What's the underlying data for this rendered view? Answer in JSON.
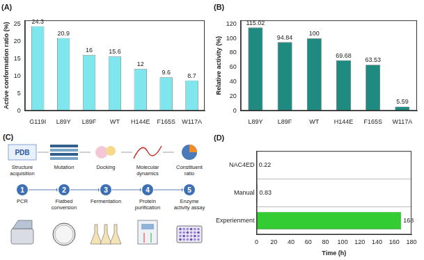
{
  "chart_data": [
    {
      "type": "bar",
      "title": "(A)",
      "categories": [
        "G119I",
        "L89Y",
        "L89F",
        "WT",
        "H144E",
        "F165S",
        "W117A"
      ],
      "values": [
        24.3,
        20.9,
        16,
        15.6,
        12,
        9.6,
        8.7
      ],
      "color": "#7fe6ee",
      "y_label": "Active conformation ratio (%)",
      "ylim": [
        0,
        26
      ],
      "yticks": [
        0,
        5,
        10,
        15,
        20,
        25
      ],
      "grid": false,
      "data_labels": true
    },
    {
      "type": "bar",
      "title": "(B)",
      "categories": [
        "L89Y",
        "L89F",
        "WT",
        "H144E",
        "F165S",
        "W117A"
      ],
      "values": [
        115.02,
        94.84,
        100,
        69.68,
        63.53,
        5.59
      ],
      "color": "#1f8a80",
      "y_label": "Relative activity (%)",
      "ylim": [
        0,
        125
      ],
      "yticks": [
        0,
        20,
        40,
        60,
        80,
        100,
        120
      ],
      "grid": false,
      "data_labels": true
    },
    {
      "type": "bar",
      "title": "(D)",
      "orientation": "horizontal",
      "categories": [
        "NAC4ED",
        "Manual",
        "Experienment"
      ],
      "values": [
        0.22,
        0.83,
        168
      ],
      "color": "#33cc33",
      "x_label": "Time (h)",
      "xlim": [
        0,
        180
      ],
      "xticks": [
        0,
        20,
        40,
        60,
        80,
        100,
        120,
        140,
        160,
        180
      ],
      "grid": true,
      "data_labels": true
    }
  ],
  "workflow": {
    "title": "(C)",
    "top_steps": [
      {
        "label": "Structure acquisition",
        "icon_text": "PDB"
      },
      {
        "label": "Mutation"
      },
      {
        "label": "Docking"
      },
      {
        "label": "Molecular dynamics"
      },
      {
        "label": "Constituent ratio"
      }
    ],
    "bottom_steps": [
      {
        "number": 1,
        "label": "PCR"
      },
      {
        "number": 2,
        "label": "Flatbed conversion"
      },
      {
        "number": 3,
        "label": "Fermentation"
      },
      {
        "number": 4,
        "label": "Protein purification"
      },
      {
        "number": 5,
        "label": "Enzyme activity assay"
      }
    ]
  }
}
